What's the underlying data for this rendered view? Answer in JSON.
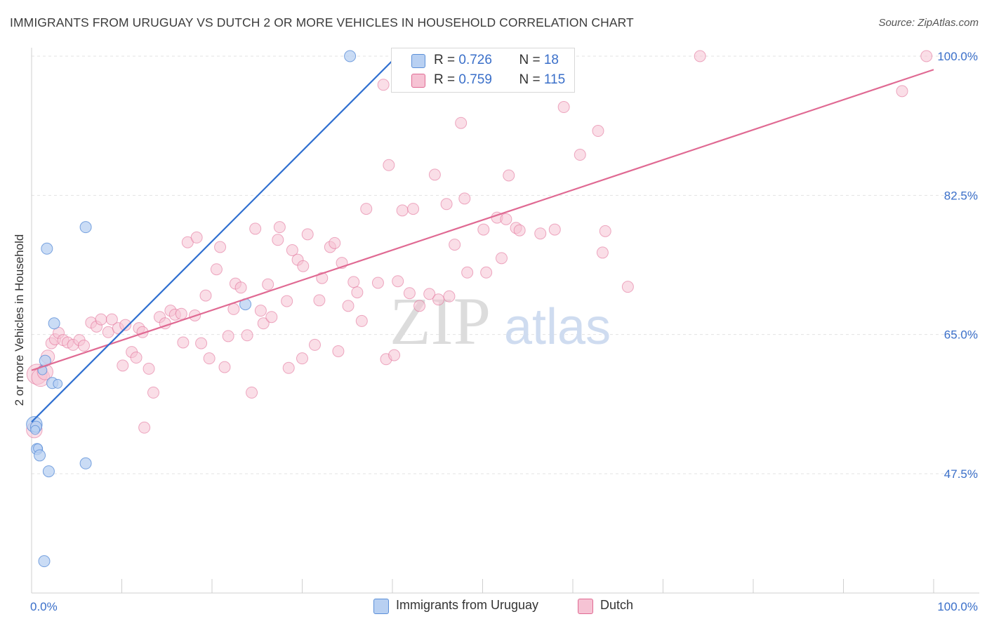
{
  "header": {
    "title": "IMMIGRANTS FROM URUGUAY VS DUTCH 2 OR MORE VEHICLES IN HOUSEHOLD CORRELATION CHART",
    "source": "Source: ZipAtlas.com"
  },
  "watermark": {
    "zip": "ZIP",
    "atlas": "atlas"
  },
  "legend": {
    "rows": [
      {
        "r_label": "R = ",
        "r_value": "0.726",
        "n_label": "N = ",
        "n_value": "18"
      },
      {
        "r_label": "R = ",
        "r_value": "0.759",
        "n_label": "N = ",
        "n_value": "115"
      }
    ]
  },
  "bottom_legend": {
    "series_a": "Immigrants from Uruguay",
    "series_b": "Dutch"
  },
  "chart_data": {
    "type": "scatter",
    "title": "IMMIGRANTS FROM URUGUAY VS DUTCH 2 OR MORE VEHICLES IN HOUSEHOLD CORRELATION CHART",
    "xlabel": "",
    "ylabel": "2 or more Vehicles in Household",
    "xlim": [
      0,
      100
    ],
    "ylim": [
      32.5,
      100
    ],
    "x_tick_labels": [
      "0.0%",
      "100.0%"
    ],
    "y_ticks": [
      47.5,
      65.0,
      82.5,
      100.0
    ],
    "y_tick_labels": [
      "47.5%",
      "65.0%",
      "82.5%",
      "100.0%"
    ],
    "grid": true,
    "legend_position": "top-center",
    "colors": {
      "uruguay": "#5b8fd8",
      "uruguay_fill": "#b8d0f2",
      "dutch": "#e06a93",
      "dutch_fill": "#f6c3d4"
    },
    "series": [
      {
        "name": "Immigrants from Uruguay",
        "R": 0.726,
        "N": 18,
        "trend": {
          "x": [
            0,
            40.5
          ],
          "y": [
            54.0,
            100.0
          ]
        },
        "points": [
          [
            0.3,
            53.7,
            14
          ],
          [
            0.5,
            53.4,
            10
          ],
          [
            0.6,
            50.6,
            10
          ],
          [
            0.7,
            50.7,
            8
          ],
          [
            0.9,
            49.8,
            10
          ],
          [
            1.5,
            61.7,
            10
          ],
          [
            1.7,
            75.8,
            10
          ],
          [
            1.9,
            47.8,
            10
          ],
          [
            2.3,
            58.9,
            10
          ],
          [
            2.5,
            66.4,
            10
          ],
          [
            2.9,
            58.8,
            8
          ],
          [
            6.0,
            78.5,
            10
          ],
          [
            6.0,
            48.8,
            10
          ],
          [
            23.7,
            68.8,
            10
          ],
          [
            35.3,
            100.0,
            10
          ],
          [
            1.4,
            36.5,
            10
          ],
          [
            0.4,
            53.0,
            8
          ],
          [
            1.2,
            60.5,
            8
          ]
        ]
      },
      {
        "name": "Dutch",
        "R": 0.759,
        "N": 115,
        "trend": {
          "x": [
            0,
            100
          ],
          "y": [
            60.5,
            98.3
          ]
        },
        "points": [
          [
            0.3,
            53.0,
            14
          ],
          [
            0.6,
            60.0,
            18
          ],
          [
            1.0,
            59.6,
            16
          ],
          [
            1.5,
            60.3,
            14
          ],
          [
            1.8,
            62.2,
            12
          ],
          [
            2.2,
            63.9,
            10
          ],
          [
            2.6,
            64.4,
            10
          ],
          [
            3.0,
            65.2,
            10
          ],
          [
            3.5,
            64.3,
            10
          ],
          [
            4.0,
            64.0,
            10
          ],
          [
            4.6,
            63.7,
            10
          ],
          [
            5.3,
            64.3,
            10
          ],
          [
            5.8,
            63.6,
            10
          ],
          [
            6.6,
            66.5,
            10
          ],
          [
            7.2,
            66.0,
            10
          ],
          [
            7.7,
            66.9,
            10
          ],
          [
            8.5,
            65.3,
            10
          ],
          [
            8.9,
            66.9,
            10
          ],
          [
            9.6,
            65.8,
            10
          ],
          [
            10.1,
            61.1,
            10
          ],
          [
            10.4,
            66.2,
            10
          ],
          [
            11.1,
            62.8,
            10
          ],
          [
            11.6,
            62.1,
            10
          ],
          [
            11.9,
            65.8,
            10
          ],
          [
            12.3,
            65.3,
            10
          ],
          [
            13.0,
            60.7,
            10
          ],
          [
            13.5,
            57.7,
            10
          ],
          [
            12.5,
            53.3,
            10
          ],
          [
            14.2,
            67.2,
            10
          ],
          [
            14.8,
            66.4,
            10
          ],
          [
            15.4,
            68.0,
            10
          ],
          [
            15.9,
            67.5,
            10
          ],
          [
            16.6,
            67.6,
            10
          ],
          [
            16.8,
            64.0,
            10
          ],
          [
            17.3,
            76.6,
            10
          ],
          [
            18.1,
            67.4,
            10
          ],
          [
            18.3,
            77.2,
            10
          ],
          [
            18.8,
            63.9,
            10
          ],
          [
            19.3,
            69.9,
            10
          ],
          [
            19.7,
            62.0,
            10
          ],
          [
            20.5,
            73.2,
            10
          ],
          [
            20.9,
            76.0,
            10
          ],
          [
            21.4,
            60.9,
            10
          ],
          [
            21.8,
            64.8,
            10
          ],
          [
            22.4,
            68.2,
            10
          ],
          [
            22.6,
            71.4,
            10
          ],
          [
            23.2,
            70.9,
            10
          ],
          [
            23.9,
            64.9,
            10
          ],
          [
            24.4,
            57.7,
            10
          ],
          [
            24.8,
            78.3,
            10
          ],
          [
            25.4,
            68.0,
            10
          ],
          [
            25.7,
            66.4,
            10
          ],
          [
            26.2,
            71.3,
            10
          ],
          [
            26.6,
            67.2,
            10
          ],
          [
            27.3,
            76.9,
            10
          ],
          [
            27.5,
            78.5,
            10
          ],
          [
            28.3,
            69.2,
            10
          ],
          [
            28.5,
            60.8,
            10
          ],
          [
            28.9,
            75.6,
            10
          ],
          [
            29.5,
            74.4,
            10
          ],
          [
            30.1,
            73.6,
            10
          ],
          [
            30.6,
            77.6,
            10
          ],
          [
            30.0,
            62.0,
            10
          ],
          [
            31.4,
            63.7,
            10
          ],
          [
            31.9,
            69.3,
            10
          ],
          [
            32.2,
            72.1,
            10
          ],
          [
            33.1,
            76.0,
            10
          ],
          [
            33.6,
            76.5,
            10
          ],
          [
            34.0,
            62.9,
            10
          ],
          [
            34.4,
            74.0,
            10
          ],
          [
            35.1,
            68.6,
            10
          ],
          [
            35.7,
            71.6,
            10
          ],
          [
            36.1,
            70.3,
            10
          ],
          [
            36.6,
            66.7,
            10
          ],
          [
            37.1,
            80.8,
            10
          ],
          [
            38.4,
            71.5,
            10
          ],
          [
            39.0,
            96.4,
            10
          ],
          [
            39.3,
            61.9,
            10
          ],
          [
            39.6,
            86.3,
            10
          ],
          [
            40.2,
            62.4,
            10
          ],
          [
            40.6,
            71.7,
            10
          ],
          [
            41.1,
            80.6,
            10
          ],
          [
            41.9,
            70.2,
            10
          ],
          [
            42.3,
            80.8,
            10
          ],
          [
            43.0,
            68.6,
            10
          ],
          [
            44.1,
            70.1,
            10
          ],
          [
            44.7,
            85.1,
            10
          ],
          [
            45.1,
            69.4,
            10
          ],
          [
            46.0,
            81.4,
            10
          ],
          [
            46.3,
            69.8,
            10
          ],
          [
            46.9,
            76.3,
            10
          ],
          [
            47.6,
            91.6,
            10
          ],
          [
            48.0,
            82.1,
            10
          ],
          [
            48.3,
            72.8,
            10
          ],
          [
            50.1,
            78.2,
            10
          ],
          [
            50.4,
            72.8,
            10
          ],
          [
            51.6,
            79.7,
            10
          ],
          [
            52.6,
            79.5,
            10
          ],
          [
            52.9,
            85.0,
            10
          ],
          [
            52.1,
            74.6,
            10
          ],
          [
            53.7,
            78.4,
            10
          ],
          [
            54.1,
            78.1,
            10
          ],
          [
            56.4,
            77.7,
            10
          ],
          [
            58.0,
            78.2,
            10
          ],
          [
            59.0,
            93.6,
            10
          ],
          [
            60.8,
            87.6,
            10
          ],
          [
            62.8,
            90.6,
            10
          ],
          [
            63.3,
            75.3,
            10
          ],
          [
            63.6,
            78.0,
            10
          ],
          [
            66.1,
            71.0,
            10
          ],
          [
            74.1,
            100.0,
            10
          ],
          [
            96.5,
            95.6,
            10
          ],
          [
            99.2,
            100.0,
            10
          ]
        ]
      }
    ]
  }
}
